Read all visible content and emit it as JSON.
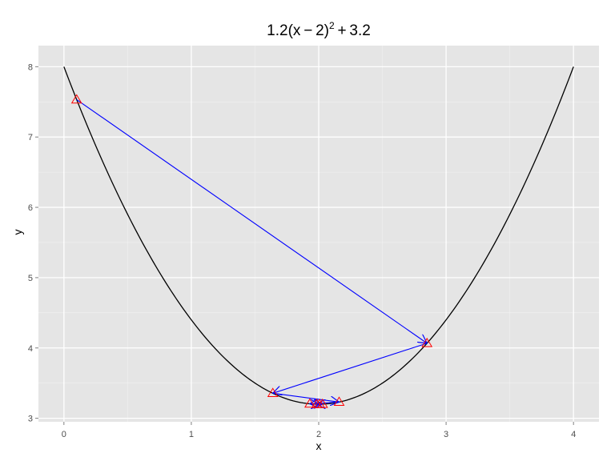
{
  "chart_data": {
    "type": "line",
    "title": {
      "base": "1.2(x − 2)",
      "exponent": "2",
      "tail": " + 3.2"
    },
    "xlabel": "x",
    "ylabel": "y",
    "xlim": [
      -0.2,
      4.2
    ],
    "ylim": [
      2.95,
      8.3
    ],
    "x_ticks": [
      0,
      1,
      2,
      3,
      4
    ],
    "y_ticks": [
      3,
      4,
      5,
      6,
      7,
      8
    ],
    "x_tick_labels": [
      "0",
      "1",
      "2",
      "3",
      "4"
    ],
    "y_tick_labels": [
      "3",
      "4",
      "5",
      "6",
      "7",
      "8"
    ],
    "x_minor_ticks": [
      0.5,
      1.5,
      2.5,
      3.5
    ],
    "y_minor_ticks": [
      3.5,
      4.5,
      5.5,
      6.5,
      7.5
    ],
    "grid": true,
    "curve": {
      "formula": "1.2*(x-2)^2+3.2",
      "a": 1.2,
      "h": 2,
      "k": 3.2,
      "x_range": [
        0,
        4
      ],
      "color": "#000000"
    },
    "iterates": {
      "x": [
        0.1,
        2.85,
        1.64,
        2.16,
        1.93,
        2.03,
        1.985,
        2.006
      ],
      "y": [
        7.532,
        4.067,
        3.356,
        3.231,
        3.206,
        3.201,
        3.2,
        3.2
      ],
      "marker": "triangle-open",
      "marker_color": "#ff0000",
      "arrow_color": "#0000ff"
    },
    "colors": {
      "panel_background": "#e5e5e5",
      "grid_major": "#ffffff",
      "grid_minor": "#f2f2f2"
    }
  }
}
